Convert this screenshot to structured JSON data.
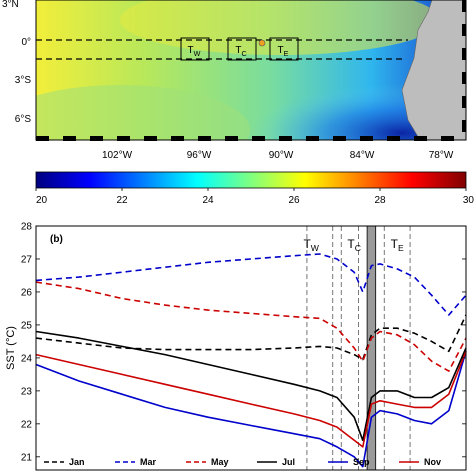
{
  "map": {
    "lat_labels": [
      "0°",
      "3°S",
      "6°S"
    ],
    "lon_labels": [
      "102°W",
      "96°W",
      "90°W",
      "84°W",
      "78°W"
    ],
    "corner_label": "3°N",
    "boxes": [
      {
        "main": "T",
        "sub": "W"
      },
      {
        "main": "T",
        "sub": "C"
      },
      {
        "main": "T",
        "sub": "E"
      }
    ]
  },
  "colorbar": {
    "ticks": [
      "20",
      "22",
      "24",
      "26",
      "28",
      "30"
    ],
    "colors": [
      "#00007f",
      "#0000ff",
      "#0080ff",
      "#00ffff",
      "#80ff80",
      "#ffff00",
      "#ff8000",
      "#ff0000",
      "#7f0000"
    ]
  },
  "chart_data": {
    "type": "line",
    "panel_label": "(b)",
    "ylabel": "SST (°C)",
    "ylim": [
      20.6,
      28
    ],
    "yticks": [
      21,
      22,
      23,
      24,
      25,
      26,
      27,
      28
    ],
    "xlim": [
      0,
      100
    ],
    "region_labels": [
      {
        "main": "T",
        "sub": "W",
        "x": 64
      },
      {
        "main": "T",
        "sub": "C",
        "x": 74
      },
      {
        "main": "T",
        "sub": "E",
        "x": 84
      }
    ],
    "dashed_lines_x": [
      63,
      69,
      71,
      75,
      81,
      87
    ],
    "land_band_x": [
      77,
      79
    ],
    "series": [
      {
        "name": "Jan",
        "color": "#000000",
        "dash": true,
        "x": [
          0,
          10,
          20,
          30,
          40,
          50,
          60,
          66,
          70,
          74,
          76,
          78,
          80,
          84,
          88,
          92,
          96,
          100
        ],
        "y": [
          24.6,
          24.45,
          24.3,
          24.25,
          24.25,
          24.25,
          24.3,
          24.35,
          24.3,
          24.1,
          23.95,
          24.7,
          24.9,
          24.9,
          24.75,
          24.5,
          24.2,
          25.3
        ]
      },
      {
        "name": "Mar",
        "color": "#0000cc",
        "dash": true,
        "x": [
          0,
          10,
          20,
          30,
          40,
          50,
          60,
          66,
          70,
          74,
          76,
          78,
          80,
          84,
          88,
          92,
          96,
          100
        ],
        "y": [
          26.35,
          26.45,
          26.6,
          26.75,
          26.9,
          27.0,
          27.1,
          27.15,
          27.0,
          26.6,
          26.0,
          26.8,
          26.85,
          26.7,
          26.45,
          25.9,
          25.3,
          25.9
        ]
      },
      {
        "name": "May",
        "color": "#cc0000",
        "dash": true,
        "x": [
          0,
          10,
          20,
          30,
          40,
          50,
          60,
          66,
          70,
          74,
          76,
          78,
          80,
          84,
          88,
          92,
          96,
          100
        ],
        "y": [
          26.3,
          26.1,
          25.8,
          25.6,
          25.45,
          25.35,
          25.25,
          25.2,
          24.9,
          24.3,
          23.9,
          24.6,
          24.8,
          24.7,
          24.4,
          23.9,
          23.6,
          24.6
        ]
      },
      {
        "name": "Jul",
        "color": "#000000",
        "dash": false,
        "x": [
          0,
          10,
          20,
          30,
          40,
          50,
          60,
          66,
          70,
          74,
          76,
          78,
          80,
          84,
          88,
          92,
          96,
          100
        ],
        "y": [
          24.8,
          24.6,
          24.35,
          24.1,
          23.8,
          23.5,
          23.2,
          23.0,
          22.8,
          22.2,
          21.5,
          22.8,
          23.0,
          23.0,
          22.8,
          22.8,
          23.1,
          24.3
        ]
      },
      {
        "name": "Sep",
        "color": "#0000cc",
        "dash": false,
        "x": [
          0,
          10,
          20,
          30,
          40,
          50,
          60,
          66,
          70,
          74,
          76,
          78,
          80,
          84,
          88,
          92,
          96,
          100
        ],
        "y": [
          23.8,
          23.3,
          22.9,
          22.5,
          22.2,
          21.95,
          21.7,
          21.55,
          21.3,
          21.0,
          20.7,
          22.2,
          22.4,
          22.3,
          22.1,
          22.0,
          22.4,
          24.2
        ]
      },
      {
        "name": "Nov",
        "color": "#cc0000",
        "dash": false,
        "x": [
          0,
          10,
          20,
          30,
          40,
          50,
          60,
          66,
          70,
          74,
          76,
          78,
          80,
          84,
          88,
          92,
          96,
          100
        ],
        "y": [
          24.1,
          23.8,
          23.5,
          23.2,
          22.9,
          22.6,
          22.3,
          22.1,
          21.9,
          21.5,
          21.3,
          22.6,
          22.7,
          22.6,
          22.5,
          22.5,
          22.9,
          24.2
        ]
      }
    ]
  }
}
